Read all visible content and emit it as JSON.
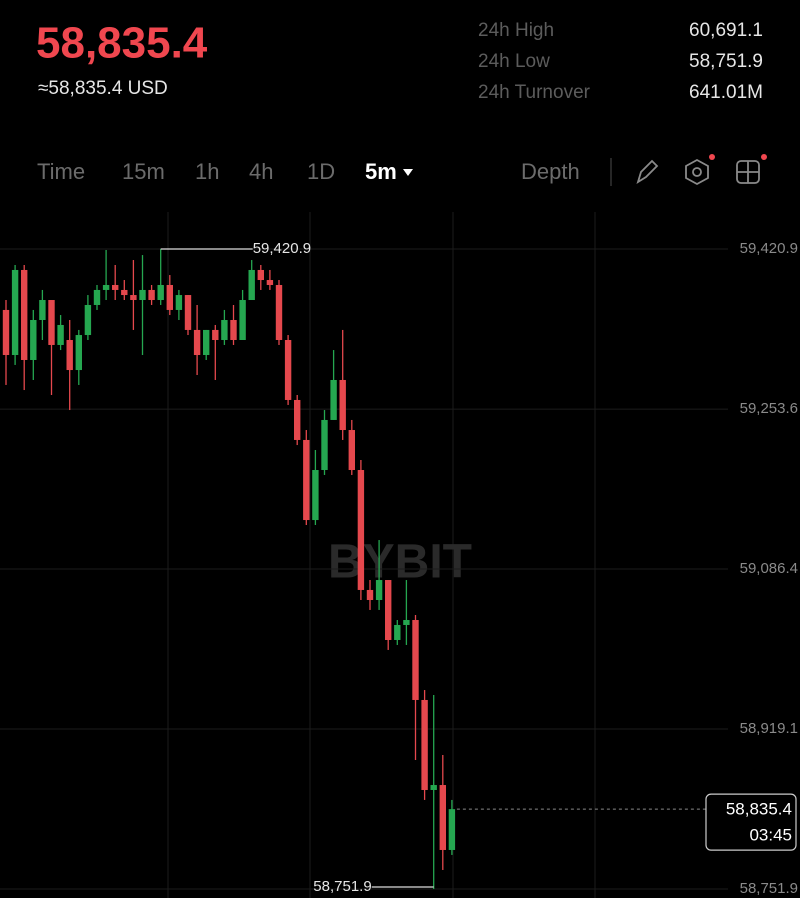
{
  "header": {
    "price": "58,835.4",
    "price_usd": "≈58,835.4 USD",
    "stats": [
      {
        "label": "24h High",
        "value": "60,691.1"
      },
      {
        "label": "24h Low",
        "value": "58,751.9"
      },
      {
        "label": "24h Turnover",
        "value": "641.01M"
      }
    ]
  },
  "toolbar": {
    "intervals": [
      "Time",
      "15m",
      "1h",
      "4h",
      "1D"
    ],
    "active": "5m",
    "depth": "Depth"
  },
  "chart_data": {
    "type": "candlestick",
    "watermark": "BYBIT",
    "up_color": "#25a750",
    "down_color": "#e5484d",
    "open": [
      59357.2,
      59310.1,
      59399.0,
      59304.9,
      59346.7,
      59367.6,
      59320.6,
      59325.8,
      59294.4,
      59331.0,
      59362.4,
      59378.1,
      59383.3,
      59378.1,
      59372.8,
      59367.6,
      59378.1,
      59367.6,
      59383.3,
      59357.2,
      59372.8,
      59336.3,
      59310.1,
      59336.3,
      59325.8,
      59346.7,
      59325.8,
      59367.6,
      59399.0,
      59388.5,
      59383.3,
      59325.8,
      59263.1,
      59221.3,
      59137.6,
      59189.9,
      59242.2,
      59284.0,
      59231.7,
      59189.9,
      59064.5,
      59054.0,
      59074.9,
      59012.2,
      59027.9,
      59033.1,
      58949.5,
      58855.4,
      58860.6,
      58792.7
    ],
    "close": [
      59310.1,
      59399.0,
      59304.9,
      59346.7,
      59367.6,
      59320.6,
      59341.5,
      59294.4,
      59331.0,
      59362.4,
      59378.1,
      59383.3,
      59378.1,
      59372.8,
      59367.6,
      59378.1,
      59367.6,
      59383.3,
      59357.2,
      59372.8,
      59336.3,
      59310.1,
      59336.3,
      59325.8,
      59346.7,
      59325.8,
      59367.6,
      59399.0,
      59388.5,
      59383.3,
      59325.8,
      59263.1,
      59221.3,
      59137.6,
      59189.9,
      59242.2,
      59284.0,
      59231.7,
      59189.9,
      59064.5,
      59054.0,
      59074.9,
      59012.2,
      59027.9,
      59033.1,
      58949.5,
      58855.4,
      58860.6,
      58792.7,
      58835.4
    ],
    "high": [
      59367.6,
      59404.2,
      59404.2,
      59357.2,
      59378.1,
      59367.6,
      59351.9,
      59346.7,
      59336.3,
      59372.8,
      59383.3,
      59419.9,
      59404.2,
      59388.5,
      59409.4,
      59414.6,
      59383.3,
      59420.9,
      59393.7,
      59378.1,
      59372.8,
      59362.4,
      59336.3,
      59341.5,
      59357.2,
      59362.4,
      59378.1,
      59409.4,
      59404.2,
      59399.0,
      59388.5,
      59331.0,
      59268.3,
      59231.7,
      59210.8,
      59252.6,
      59315.3,
      59336.3,
      59242.2,
      59200.4,
      59074.9,
      59116.7,
      59074.9,
      59033.1,
      59074.9,
      59038.3,
      58959.9,
      58954.7,
      58892.0,
      58845.0
    ],
    "low": [
      59278.8,
      59299.7,
      59273.5,
      59284.0,
      59325.8,
      59268.3,
      59315.3,
      59252.6,
      59278.8,
      59325.8,
      59357.2,
      59367.6,
      59367.6,
      59367.6,
      59336.3,
      59310.1,
      59362.4,
      59362.4,
      59351.9,
      59346.7,
      59331.0,
      59289.2,
      59304.9,
      59284.0,
      59320.6,
      59320.6,
      59325.8,
      59367.6,
      59378.1,
      59378.1,
      59320.6,
      59257.9,
      59216.0,
      59132.4,
      59132.4,
      59184.7,
      59242.2,
      59221.3,
      59184.7,
      59054.0,
      59043.6,
      59043.6,
      59001.8,
      59007.0,
      59007.0,
      58886.8,
      58845.0,
      58751.9,
      58771.8,
      58787.5
    ],
    "ylim": [
      58742.5,
      59459.6
    ],
    "yticks": [
      {
        "value": 59420.9,
        "label": "59,420.9"
      },
      {
        "value": 59253.6,
        "label": "59,253.6"
      },
      {
        "value": 59086.4,
        "label": "59,086.4"
      },
      {
        "value": 58919.1,
        "label": "58,919.1"
      },
      {
        "value": 58751.9,
        "label": "58,751.9"
      }
    ],
    "max_marker": {
      "value": 59420.9,
      "label": "59,420.9"
    },
    "min_marker": {
      "value": 58751.9,
      "label": "58,751.9"
    },
    "last_price": {
      "value": 58835.4,
      "label": "58,835.4"
    },
    "countdown": "03:45"
  }
}
